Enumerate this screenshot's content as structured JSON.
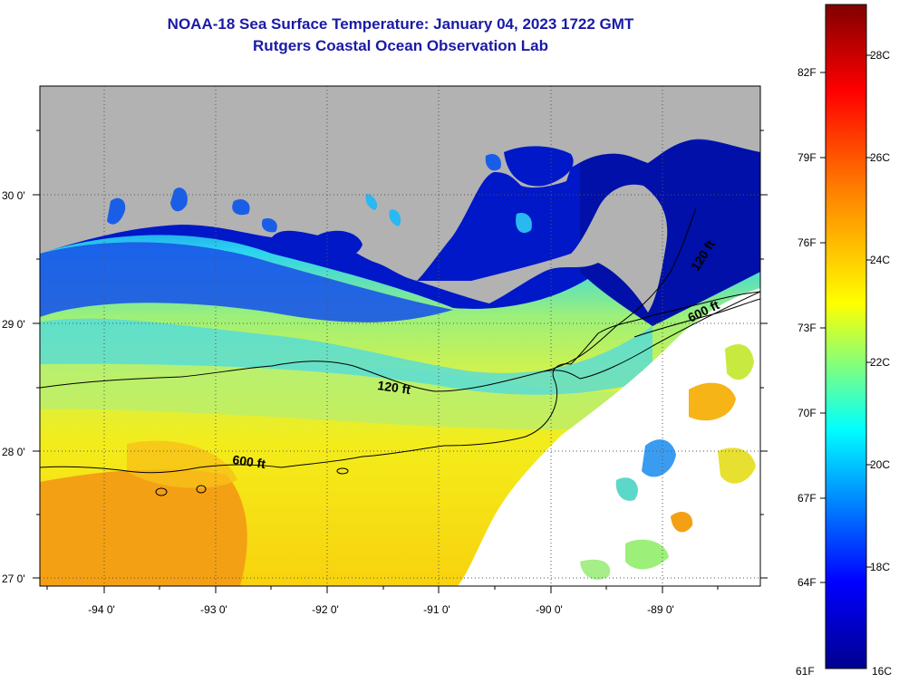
{
  "header": {
    "title": "NOAA-18 Sea Surface Temperature:  January 04, 2023 1722 GMT",
    "subtitle": "Rutgers Coastal Ocean Observation Lab"
  },
  "map": {
    "lon_labels": [
      "-94 0'",
      "-93 0'",
      "-92 0'",
      "-91 0'",
      "-90 0'",
      "-89 0'"
    ],
    "lat_labels": [
      "30 0'",
      "29 0'",
      "28 0'",
      "27 0'"
    ],
    "contours": [
      {
        "label": "120 ft",
        "depth_ft": 120
      },
      {
        "label": "600 ft",
        "depth_ft": 600
      },
      {
        "label": "600 ft",
        "depth_ft": 600
      },
      {
        "label": "120 ft",
        "depth_ft": 120
      }
    ],
    "colors": {
      "land": "#b2b2b2",
      "cloud": "#ffffff",
      "title": "#1a1aa6"
    }
  },
  "colorbar": {
    "fahrenheit": [
      "82F",
      "79F",
      "76F",
      "73F",
      "70F",
      "67F",
      "64F",
      "61F"
    ],
    "celsius": [
      "28C",
      "26C",
      "24C",
      "22C",
      "20C",
      "18C",
      "16C"
    ],
    "range_c": [
      16,
      29.4
    ]
  }
}
